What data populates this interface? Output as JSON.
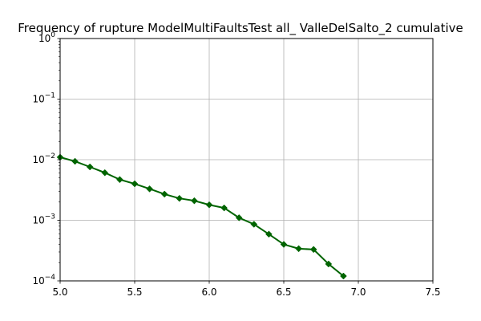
{
  "chart_data": {
    "type": "line",
    "title": "Frequency of rupture ModelMultiFaultsTest all_ ValleDelSalto_2 cumulative",
    "xlabel": "",
    "ylabel": "",
    "xlim": [
      5.0,
      7.5
    ],
    "ylim": [
      0.0001,
      1
    ],
    "yscale": "log",
    "grid": true,
    "x_ticks": [
      5.0,
      5.5,
      6.0,
      6.5,
      7.0,
      7.5
    ],
    "x_tick_labels": [
      "5.0",
      "5.5",
      "6.0",
      "6.5",
      "7.0",
      "7.5"
    ],
    "y_ticks": [
      0.0001,
      0.001,
      0.01,
      0.1,
      1
    ],
    "y_tick_labels": [
      {
        "base": "10",
        "exp": "−4"
      },
      {
        "base": "10",
        "exp": "−3"
      },
      {
        "base": "10",
        "exp": "−2"
      },
      {
        "base": "10",
        "exp": "−1"
      },
      {
        "base": "10",
        "exp": "0"
      }
    ],
    "series": [
      {
        "color": "#006400",
        "marker": "diamond",
        "x": [
          5.0,
          5.1,
          5.2,
          5.3,
          5.4,
          5.5,
          5.6,
          5.7,
          5.8,
          5.9,
          6.0,
          6.1,
          6.2,
          6.3,
          6.4,
          6.5,
          6.6,
          6.7,
          6.8,
          6.9
        ],
        "y": [
          0.011,
          0.0094,
          0.0076,
          0.0061,
          0.0047,
          0.004,
          0.0033,
          0.0027,
          0.0023,
          0.0021,
          0.0018,
          0.0016,
          0.0011,
          0.00086,
          0.00059,
          0.0004,
          0.00034,
          0.00033,
          0.00019,
          0.00012
        ]
      }
    ]
  }
}
